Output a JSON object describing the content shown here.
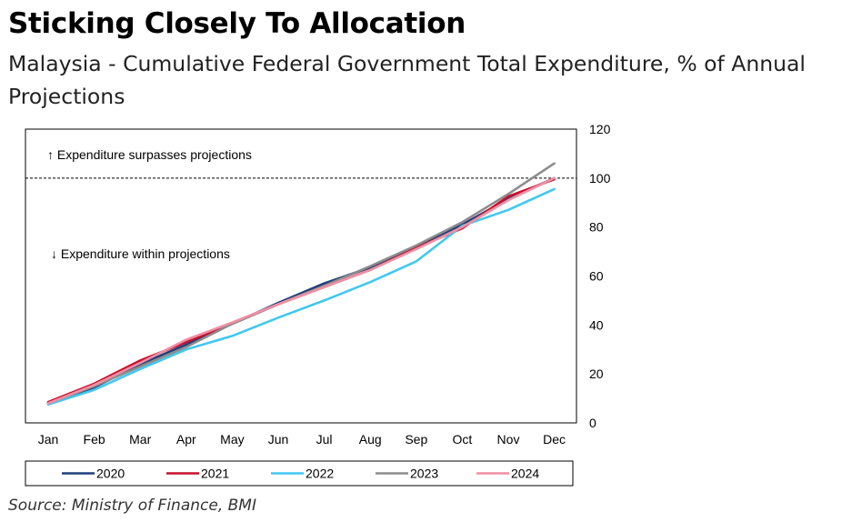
{
  "title": "Sticking Closely To Allocation",
  "subtitle": "Malaysia - Cumulative Federal Government Total Expenditure, % of Annual Projections",
  "source": "Source: Ministry of Finance, BMI",
  "chart_data": {
    "type": "line",
    "categories": [
      "Jan",
      "Feb",
      "Mar",
      "Apr",
      "May",
      "Jun",
      "Jul",
      "Aug",
      "Sep",
      "Oct",
      "Nov",
      "Dec"
    ],
    "ylim": [
      0,
      120
    ],
    "yticks": [
      0,
      20,
      40,
      60,
      80,
      100,
      120
    ],
    "y_axis_side": "right",
    "reference_line": 100,
    "annotations": {
      "above": "↑ Expenditure surpasses projections",
      "below": "↓ Expenditure within projections"
    },
    "legend_position": "bottom",
    "series": [
      {
        "name": "2020",
        "color": "#1f3f7a",
        "values": [
          8,
          14.5,
          24,
          32,
          40.5,
          49,
          57,
          63.5,
          72,
          81,
          91.5,
          100
        ]
      },
      {
        "name": "2021",
        "color": "#c8102e",
        "values": [
          8.5,
          16,
          25.5,
          33,
          40.5,
          48.5,
          55.5,
          62.5,
          71.5,
          79.5,
          92.5,
          99.5
        ]
      },
      {
        "name": "2022",
        "color": "#41c8f0",
        "values": [
          7.5,
          13.5,
          22,
          30,
          35.5,
          43,
          50,
          57.5,
          66,
          80.5,
          87,
          95.5
        ]
      },
      {
        "name": "2023",
        "color": "#8c8c8c",
        "values": [
          8,
          15,
          23,
          31,
          40.5,
          48.5,
          56,
          64,
          72.5,
          82,
          93.5,
          106
        ]
      },
      {
        "name": "2024",
        "color": "#ef8fa3",
        "values": [
          8,
          15.5,
          24.5,
          34,
          41,
          48.5,
          55.5,
          62.5,
          71,
          80,
          91,
          100
        ]
      }
    ]
  }
}
